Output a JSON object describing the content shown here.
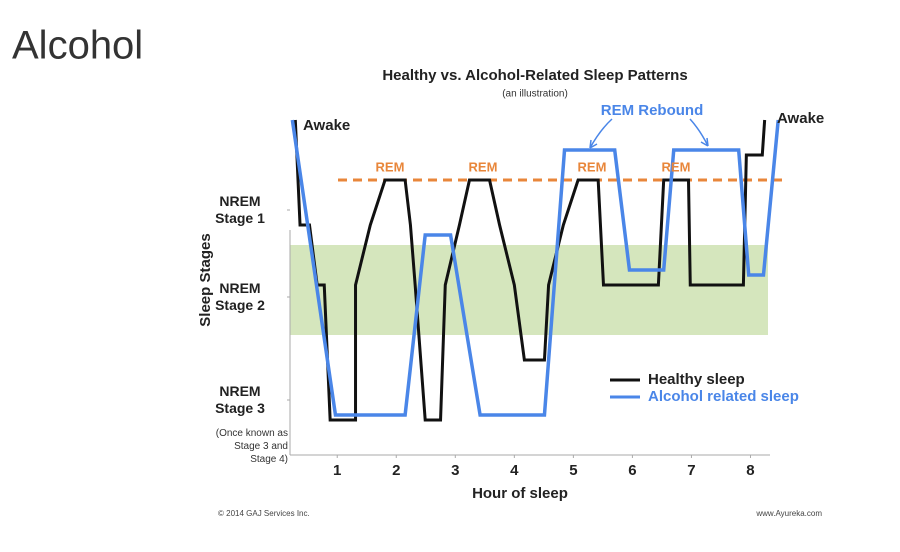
{
  "heading": "Alcohol",
  "chart_data": {
    "type": "line",
    "title": "Healthy vs. Alcohol-Related Sleep Patterns",
    "subtitle": "(an illustration)",
    "xlabel": "Hour of sleep",
    "ylabel": "Sleep Stages",
    "xlim": [
      0.2,
      8.5
    ],
    "xticks": [
      1,
      2,
      3,
      4,
      5,
      6,
      7,
      8
    ],
    "ylim": [
      -1.5,
      33.5
    ],
    "yticks": [
      {
        "value": 23,
        "label": "NREM Stage 1"
      },
      {
        "value": 14.3,
        "label": "NREM Stage 2"
      },
      {
        "value": 4,
        "label": "NREM Stage 3"
      }
    ],
    "ytick_note": "(Once known as Stage 3 and Stage 4)",
    "shade_range": [
      10.5,
      19.5
    ],
    "shade_color": "#d5e6bd",
    "reference_line": {
      "value": 26,
      "color": "#e8863a"
    },
    "annotations": [
      "Awake",
      "Awake",
      "REM",
      "REM",
      "REM",
      "REM",
      "REM Rebound"
    ],
    "series": [
      {
        "name": "Healthy sleep",
        "color": "#111111",
        "x": [
          0.29,
          0.37,
          0.53,
          0.66,
          0.78,
          0.88,
          1.31,
          1.31,
          1.56,
          1.81,
          2.15,
          2.24,
          2.32,
          2.49,
          2.75,
          2.83,
          3.07,
          3.24,
          3.58,
          3.75,
          4.0,
          4.17,
          4.51,
          4.58,
          4.83,
          5.08,
          5.42,
          5.51,
          6.44,
          6.53,
          6.95,
          6.98,
          7.88,
          7.93,
          8.2,
          8.24
        ],
        "values": [
          32,
          21.5,
          21.5,
          15.5,
          15.5,
          2,
          2,
          15.5,
          21.5,
          26,
          26,
          21.5,
          15.5,
          2,
          2,
          15.5,
          21.5,
          26,
          26,
          21.5,
          15.5,
          8,
          8,
          15.5,
          21.5,
          26,
          26,
          15.5,
          15.5,
          26,
          26,
          15.5,
          15.5,
          28.5,
          28.5,
          32
        ]
      },
      {
        "name": "Alcohol related sleep",
        "color": "#4a86e8",
        "x": [
          0.24,
          0.97,
          2.15,
          2.49,
          2.92,
          3.42,
          4.51,
          4.85,
          5.7,
          5.95,
          6.53,
          6.7,
          7.8,
          7.97,
          8.22,
          8.47
        ],
        "values": [
          32,
          2.5,
          2.5,
          20.5,
          20.5,
          2.5,
          2.5,
          29,
          29,
          17,
          17,
          29,
          29,
          16.5,
          16.5,
          32
        ]
      }
    ]
  },
  "footer": {
    "left": "© 2014 GAJ Services Inc.",
    "right": "www.Ayureka.com"
  }
}
